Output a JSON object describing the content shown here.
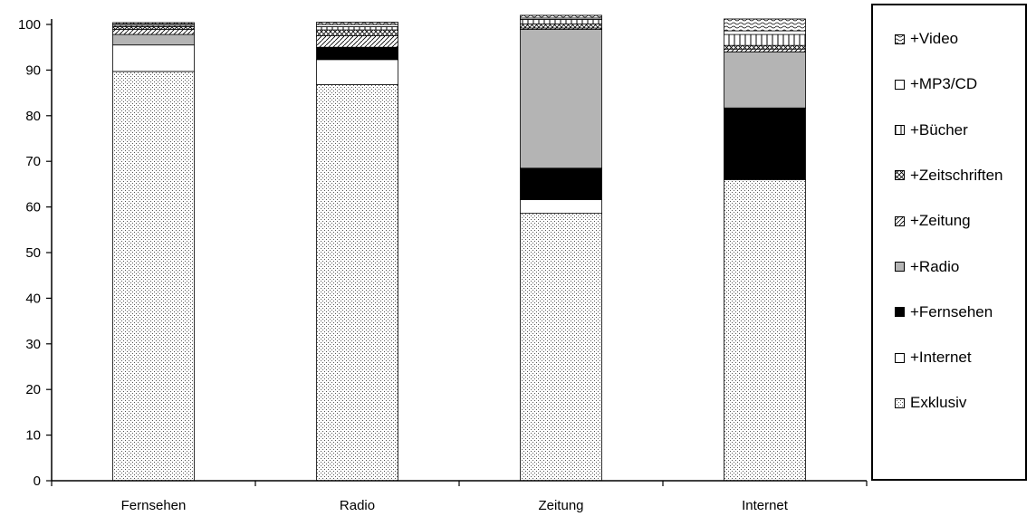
{
  "chart_data": {
    "type": "bar",
    "stacked": true,
    "title": "",
    "xlabel": "",
    "ylabel": "",
    "ylim": [
      0,
      100
    ],
    "yticks": [
      0,
      10,
      20,
      30,
      40,
      50,
      60,
      70,
      80,
      90,
      100
    ],
    "categories": [
      "Fernsehen",
      "Radio",
      "Zeitung",
      "Internet"
    ],
    "legend_position": "right",
    "grid": false,
    "series": [
      {
        "name": "Exklusiv",
        "pattern": "dots",
        "values": [
          89.7,
          86.8,
          58.6,
          66.0
        ]
      },
      {
        "name": "+Internet",
        "pattern": "white",
        "values": [
          5.8,
          5.5,
          3.0,
          0
        ]
      },
      {
        "name": "+Fernsehen",
        "pattern": "black",
        "values": [
          0,
          2.7,
          6.9,
          15.7
        ]
      },
      {
        "name": "+Radio",
        "pattern": "gray",
        "values": [
          2.3,
          0,
          30.4,
          12.3
        ]
      },
      {
        "name": "+Zeitung",
        "pattern": "diag",
        "values": [
          1.1,
          2.5,
          0.3,
          0.6
        ]
      },
      {
        "name": "+Zeitschriften",
        "pattern": "crosshatch",
        "values": [
          0.6,
          1.3,
          0.9,
          0.8
        ]
      },
      {
        "name": "+Bücher",
        "pattern": "vertical",
        "values": [
          0.3,
          0.7,
          1.0,
          2.4
        ]
      },
      {
        "name": "+MP3/CD",
        "pattern": "white",
        "values": [
          0.3,
          0.5,
          0.3,
          0.8
        ]
      },
      {
        "name": "+Video",
        "pattern": "wave",
        "values": [
          0.3,
          0.5,
          0.6,
          2.6
        ]
      }
    ]
  },
  "colors": {
    "axis": "#000000",
    "gray": "#b4b4b4",
    "black": "#000000",
    "white": "#ffffff"
  },
  "legend": {
    "items_top_to_bottom": [
      "+Video",
      "+MP3/CD",
      "+Bücher",
      "+Zeitschriften",
      "+Zeitung",
      "+Radio",
      "+Fernsehen",
      "+Internet",
      "Exklusiv"
    ]
  }
}
